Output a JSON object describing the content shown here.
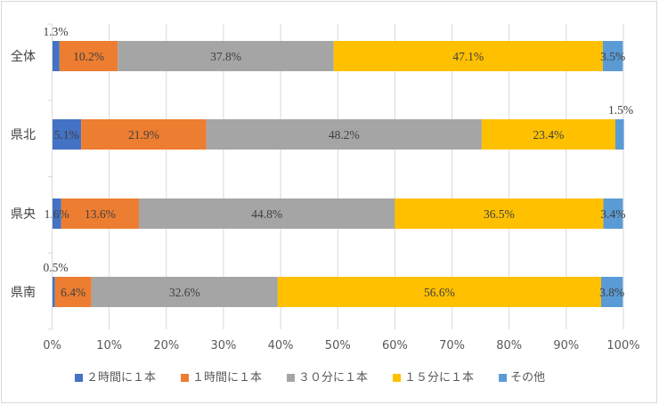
{
  "chart_data": {
    "type": "bar",
    "orientation": "horizontal",
    "stacked": "percent",
    "title": "",
    "xlabel": "",
    "ylabel": "",
    "xlim": [
      0,
      100
    ],
    "x_ticks": [
      "0%",
      "10%",
      "20%",
      "30%",
      "40%",
      "50%",
      "60%",
      "70%",
      "80%",
      "90%",
      "100%"
    ],
    "grid": true,
    "legend_position": "bottom",
    "categories": [
      "全体",
      "県北",
      "県央",
      "県南"
    ],
    "series": [
      {
        "name": "２時間に１本",
        "color": "#4472c4",
        "values": [
          1.3,
          5.1,
          1.6,
          0.5
        ],
        "labels": [
          "1.3%",
          "5.1%",
          "1.6%",
          "0.5%"
        ]
      },
      {
        "name": "１時間に１本",
        "color": "#ed7d31",
        "values": [
          10.2,
          21.9,
          13.6,
          6.4
        ],
        "labels": [
          "10.2%",
          "21.9%",
          "13.6%",
          "6.4%"
        ]
      },
      {
        "name": "３０分に１本",
        "color": "#a5a5a5",
        "values": [
          37.8,
          48.2,
          44.8,
          32.6
        ],
        "labels": [
          "37.8%",
          "48.2%",
          "44.8%",
          "32.6%"
        ]
      },
      {
        "name": "１５分に１本",
        "color": "#ffc000",
        "values": [
          47.1,
          23.4,
          36.5,
          56.6
        ],
        "labels": [
          "47.1%",
          "23.4%",
          "36.5%",
          "56.6%"
        ]
      },
      {
        "name": "その他",
        "color": "#5b9bd5",
        "values": [
          3.5,
          1.5,
          3.4,
          3.8
        ],
        "labels": [
          "3.5%",
          "1.5%",
          "3.4%",
          "3.8%"
        ]
      }
    ],
    "axis_color": "#d9d9d9",
    "grid_color": "#d9d9d9"
  }
}
